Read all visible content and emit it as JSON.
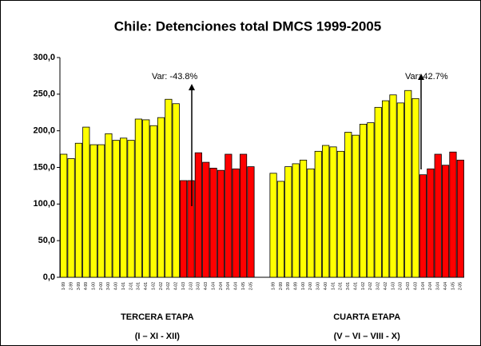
{
  "chart_data": {
    "type": "bar",
    "title": "Chile: Detenciones total DMCS 1999-2005",
    "categories": [
      "1-99",
      "2-99",
      "3-99",
      "4-99",
      "1-00",
      "2-00",
      "3-00",
      "4-00",
      "1-01",
      "2-01",
      "3-01",
      "4-01",
      "1-02",
      "2-02",
      "3-02",
      "4-02",
      "1-03",
      "2-03",
      "3-03",
      "4-03",
      "1-04",
      "2-04",
      "3-04",
      "4-04",
      "1-05",
      "2-05"
    ],
    "ylim": [
      0,
      300
    ],
    "yticks": [
      {
        "value": 0,
        "label": "0,0"
      },
      {
        "value": 50,
        "label": "50,0"
      },
      {
        "value": 100,
        "label": "100,0"
      },
      {
        "value": 150,
        "label": "150,0"
      },
      {
        "value": 200,
        "label": "200,0"
      },
      {
        "value": 250,
        "label": "250,0"
      },
      {
        "value": 300,
        "label": "300,0"
      }
    ],
    "groups": [
      {
        "name": "TERCERA ETAPA",
        "subtitle": "(I – XI - XII)",
        "annotation": "Var: -43.8%",
        "values": [
          168,
          162,
          183,
          205,
          181,
          181,
          196,
          187,
          190,
          187,
          216,
          215,
          207,
          218,
          243,
          237,
          132,
          132,
          170,
          157,
          149,
          146,
          168,
          148,
          168,
          151
        ],
        "colors": [
          "#ffff00",
          "#ffff00",
          "#ffff00",
          "#ffff00",
          "#ffff00",
          "#ffff00",
          "#ffff00",
          "#ffff00",
          "#ffff00",
          "#ffff00",
          "#ffff00",
          "#ffff00",
          "#ffff00",
          "#ffff00",
          "#ffff00",
          "#ffff00",
          "#ff0000",
          "#ff0000",
          "#ff0000",
          "#ff0000",
          "#ff0000",
          "#ff0000",
          "#ff0000",
          "#ff0000",
          "#ff0000",
          "#ff0000"
        ]
      },
      {
        "name": "CUARTA ETAPA",
        "subtitle": "(V – VI – VIII - X)",
        "annotation": "Var: 42.7%",
        "values": [
          142,
          131,
          151,
          155,
          160,
          148,
          172,
          180,
          178,
          172,
          198,
          194,
          209,
          211,
          232,
          241,
          249,
          238,
          255,
          244,
          140,
          148,
          168,
          153,
          171,
          160
        ],
        "colors": [
          "#ffff00",
          "#ffff00",
          "#ffff00",
          "#ffff00",
          "#ffff00",
          "#ffff00",
          "#ffff00",
          "#ffff00",
          "#ffff00",
          "#ffff00",
          "#ffff00",
          "#ffff00",
          "#ffff00",
          "#ffff00",
          "#ffff00",
          "#ffff00",
          "#ffff00",
          "#ffff00",
          "#ffff00",
          "#ffff00",
          "#ff0000",
          "#ff0000",
          "#ff0000",
          "#ff0000",
          "#ff0000",
          "#ff0000"
        ]
      }
    ]
  }
}
